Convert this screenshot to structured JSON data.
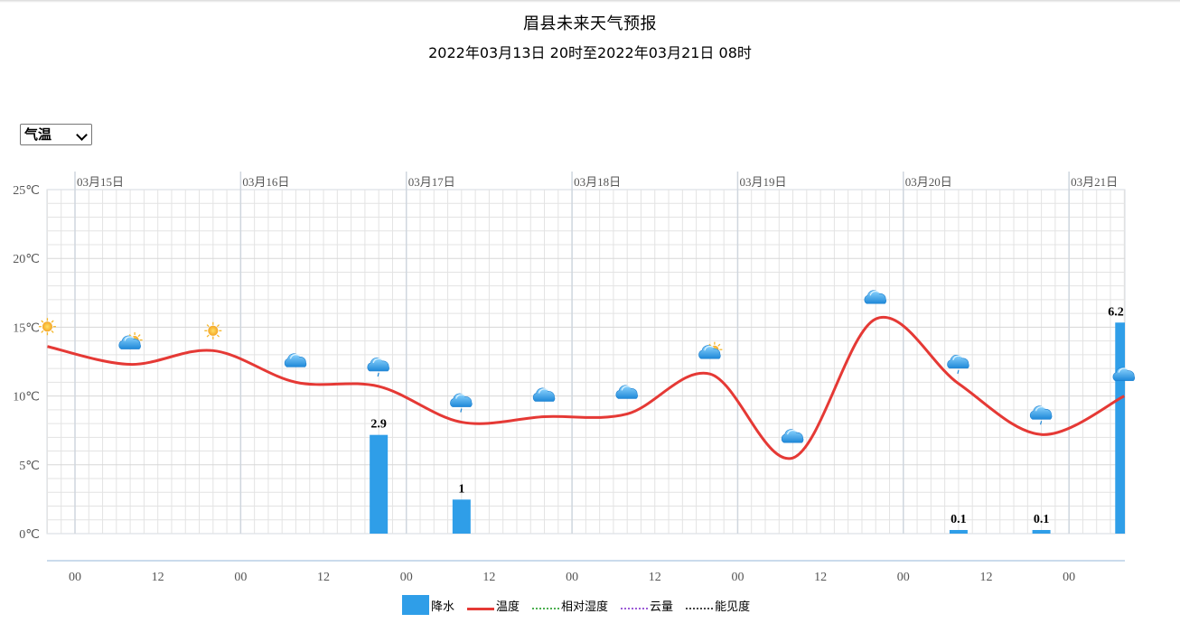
{
  "title": "眉县未来天气预报",
  "subtitle": "2022年03月13日 20时至2022年03月21日 08时",
  "selector": {
    "value": "气温"
  },
  "legend": {
    "precip": "降水",
    "temp": "温度",
    "humidity": "相对湿度",
    "cloud": "云量",
    "visibility": "能见度"
  },
  "colors": {
    "temp": "#e53935",
    "bar": "#2f9ee8",
    "grid": "#e3e3e3",
    "day_grid": "#cfd6de"
  },
  "chart_data": {
    "type": "line+bar",
    "x_unit": "hours from 2022-03-15 00:00",
    "xlim": [
      -12,
      108
    ],
    "ylim": [
      0,
      25
    ],
    "yticks": [
      0,
      5,
      10,
      15,
      20,
      25
    ],
    "ytick_labels": [
      "0℃",
      "5℃",
      "10℃",
      "15℃",
      "20℃",
      "25℃"
    ],
    "days": [
      {
        "label": "03月15日",
        "x": 0
      },
      {
        "label": "03月16日",
        "x": 24
      },
      {
        "label": "03月17日",
        "x": 48
      },
      {
        "label": "03月18日",
        "x": 72
      },
      {
        "label": "03月19日",
        "x": 96
      },
      {
        "label": "03月20日",
        "x": 120
      },
      {
        "label": "03月21日",
        "x": 144
      }
    ],
    "hour_ticks": [
      {
        "label": "00",
        "x": 0
      },
      {
        "label": "12",
        "x": 12
      },
      {
        "label": "00",
        "x": 24
      },
      {
        "label": "12",
        "x": 36
      },
      {
        "label": "00",
        "x": 48
      },
      {
        "label": "12",
        "x": 60
      },
      {
        "label": "00",
        "x": 72
      },
      {
        "label": "12",
        "x": 84
      },
      {
        "label": "00",
        "x": 96
      },
      {
        "label": "12",
        "x": 108
      },
      {
        "label": "00",
        "x": 120
      },
      {
        "label": "12",
        "x": 132
      },
      {
        "label": "00",
        "x": 144
      }
    ],
    "temperature": [
      {
        "x": -4,
        "y": 13.6,
        "icon": "sunny-icon"
      },
      {
        "x": 8,
        "y": 12.3,
        "icon": "partly-cloudy-icon"
      },
      {
        "x": 20,
        "y": 13.3,
        "icon": "sunny-icon"
      },
      {
        "x": 32,
        "y": 11.0,
        "icon": "cloudy-icon"
      },
      {
        "x": 44,
        "y": 10.7,
        "icon": "light-rain-icon"
      },
      {
        "x": 56,
        "y": 8.1,
        "icon": "light-rain-icon"
      },
      {
        "x": 68,
        "y": 8.5,
        "icon": "cloudy-icon"
      },
      {
        "x": 80,
        "y": 8.7,
        "icon": "cloudy-icon"
      },
      {
        "x": 92,
        "y": 11.6,
        "icon": "partly-cloudy-icon"
      },
      {
        "x": 104,
        "y": 5.5,
        "icon": "cloudy-icon"
      },
      {
        "x": 116,
        "y": 15.6,
        "icon": "cloudy-icon"
      },
      {
        "x": 128,
        "y": 10.9,
        "icon": "light-rain-icon"
      },
      {
        "x": 140,
        "y": 7.2,
        "icon": "light-rain-icon"
      },
      {
        "x": 152,
        "y": 10.0,
        "icon": "cloudy-icon"
      }
    ],
    "precipitation": [
      {
        "x": 44,
        "value": 2.9,
        "label": "2.9"
      },
      {
        "x": 56,
        "value": 1.0,
        "label": "1"
      },
      {
        "x": 128,
        "value": 0.1,
        "label": "0.1"
      },
      {
        "x": 140,
        "value": 0.1,
        "label": "0.1"
      },
      {
        "x": 152,
        "value": 6.2,
        "label": "6.2"
      }
    ]
  }
}
